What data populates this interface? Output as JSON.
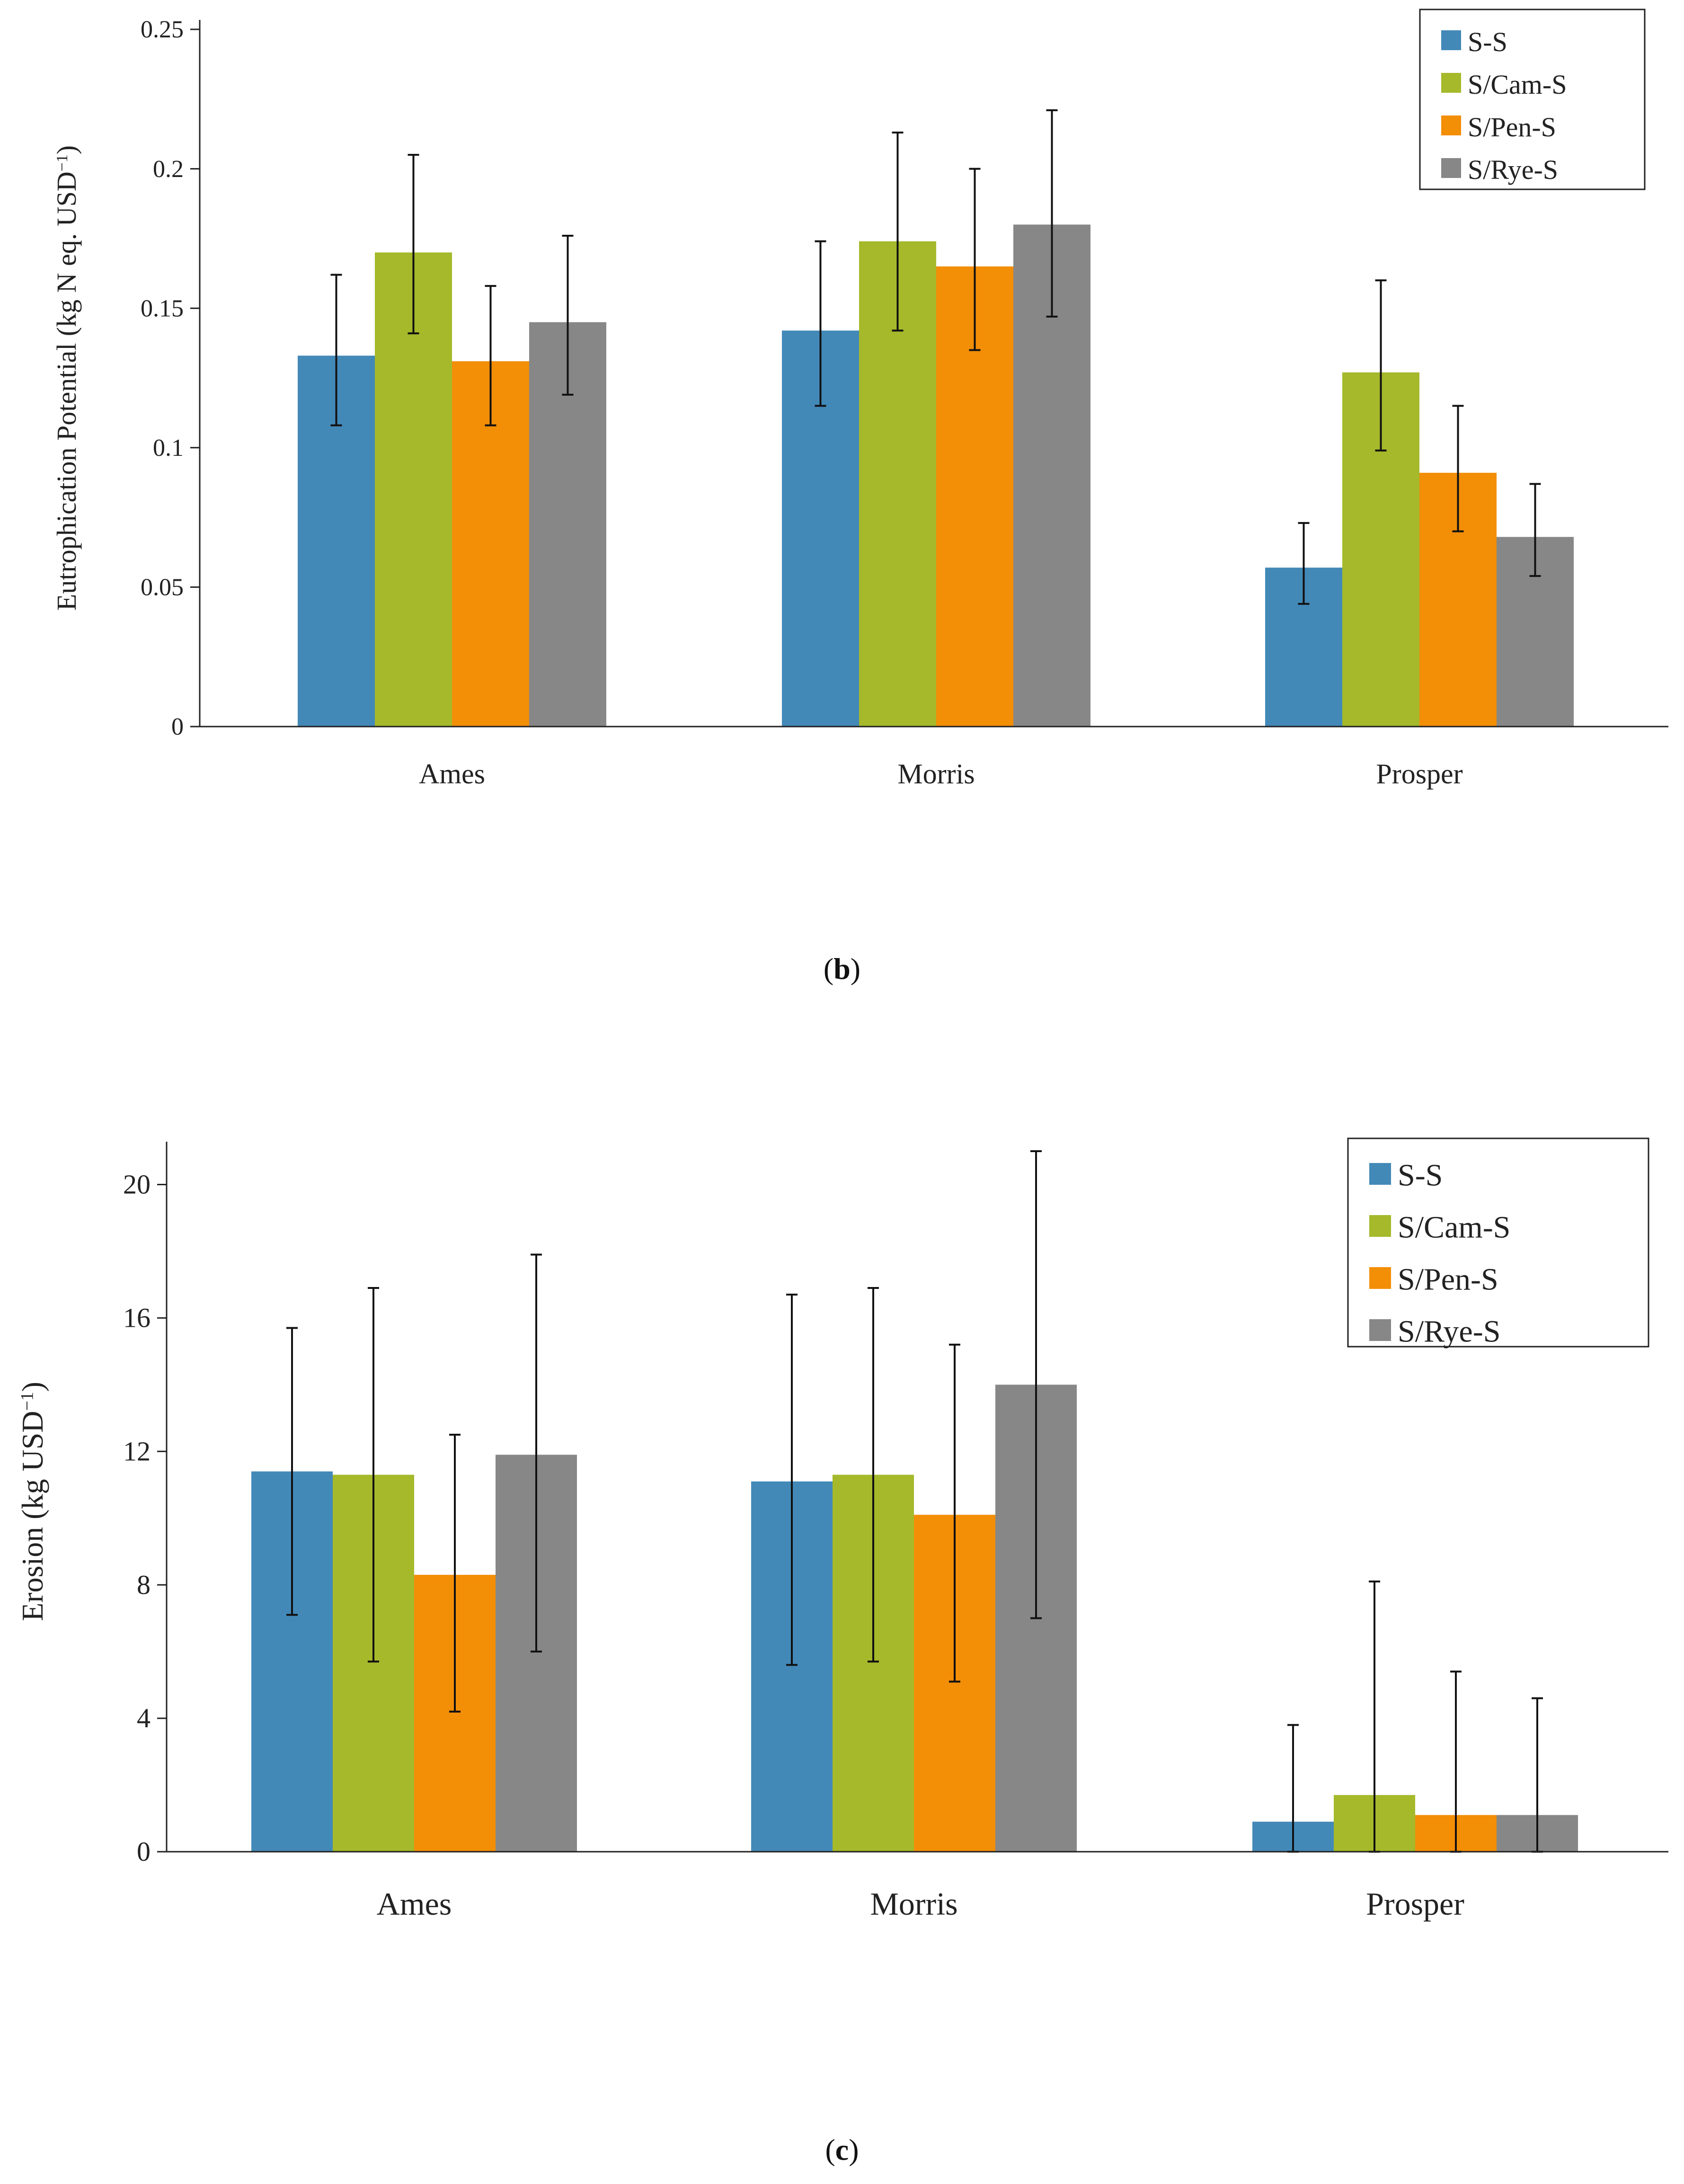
{
  "colors": {
    "S-S": "#4389b8",
    "S/Cam-S": "#a5b92b",
    "S/Pen-S": "#f38e07",
    "S/Rye-S": "#878787",
    "axis": "#222222",
    "errorbar": "#111111"
  },
  "chart_data": [
    {
      "type": "bar",
      "panel": "b",
      "caption_open": "(",
      "caption_letter": "b",
      "caption_close": ")",
      "ylabel": "Eutrophication Potential (kg N eq. USD",
      "ylabel_sup": "−1",
      "ylabel_end": ")",
      "ylim": [
        0,
        0.25
      ],
      "yticks": [
        0,
        0.05,
        0.1,
        0.15,
        0.2,
        0.25
      ],
      "ytick_labels": [
        "0",
        "0.05",
        "0.1",
        "0.15",
        "0.2",
        "0.25"
      ],
      "categories": [
        "Ames",
        "Morris",
        "Prosper"
      ],
      "series": [
        {
          "name": "S-S",
          "values": [
            0.133,
            0.142,
            0.057
          ],
          "err_low": [
            0.108,
            0.115,
            0.044
          ],
          "err_high": [
            0.162,
            0.174,
            0.073
          ]
        },
        {
          "name": "S/Cam-S",
          "values": [
            0.17,
            0.174,
            0.127
          ],
          "err_low": [
            0.141,
            0.142,
            0.099
          ],
          "err_high": [
            0.205,
            0.213,
            0.16
          ]
        },
        {
          "name": "S/Pen-S",
          "values": [
            0.131,
            0.165,
            0.091
          ],
          "err_low": [
            0.108,
            0.135,
            0.07
          ],
          "err_high": [
            0.158,
            0.2,
            0.115
          ]
        },
        {
          "name": "S/Rye-S",
          "values": [
            0.145,
            0.18,
            0.068
          ],
          "err_low": [
            0.119,
            0.147,
            0.054
          ],
          "err_high": [
            0.176,
            0.221,
            0.087
          ]
        }
      ],
      "legend": "top-right"
    },
    {
      "type": "bar",
      "panel": "c",
      "caption_open": "(",
      "caption_letter": "c",
      "caption_close": ")",
      "ylabel": "Erosion (kg USD",
      "ylabel_sup": "−1",
      "ylabel_end": ")",
      "ylim": [
        0,
        21
      ],
      "yticks": [
        0,
        4,
        8,
        12,
        16,
        20
      ],
      "ytick_labels": [
        "0",
        "4",
        "8",
        "12",
        "16",
        "20"
      ],
      "categories": [
        "Ames",
        "Morris",
        "Prosper"
      ],
      "series": [
        {
          "name": "S-S",
          "values": [
            11.4,
            11.1,
            0.9
          ],
          "err_low": [
            7.1,
            5.6,
            0.0
          ],
          "err_high": [
            15.7,
            16.7,
            3.8
          ]
        },
        {
          "name": "S/Cam-S",
          "values": [
            11.3,
            11.3,
            1.7
          ],
          "err_low": [
            5.7,
            5.7,
            0.0
          ],
          "err_high": [
            16.9,
            16.9,
            8.1
          ]
        },
        {
          "name": "S/Pen-S",
          "values": [
            8.3,
            10.1,
            1.1
          ],
          "err_low": [
            4.2,
            5.1,
            0.0
          ],
          "err_high": [
            12.5,
            15.2,
            5.4
          ]
        },
        {
          "name": "S/Rye-S",
          "values": [
            11.9,
            14.0,
            1.1
          ],
          "err_low": [
            6.0,
            7.0,
            0.0
          ],
          "err_high": [
            17.9,
            21.0,
            4.6
          ]
        }
      ],
      "legend": "top-right"
    }
  ]
}
